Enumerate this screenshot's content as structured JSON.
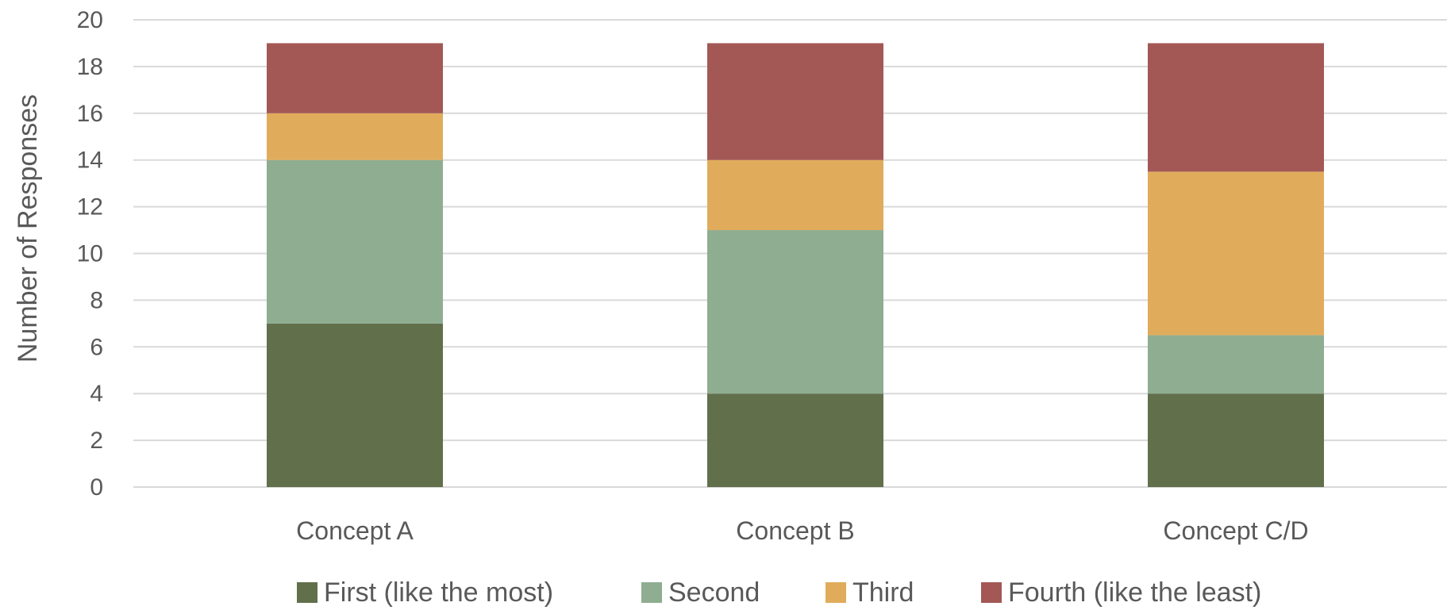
{
  "chart_data": {
    "type": "bar",
    "stacked": true,
    "categories": [
      "Concept A",
      "Concept B",
      "Concept C/D"
    ],
    "series": [
      {
        "name": "First (like the most)",
        "values": [
          7,
          4,
          4
        ],
        "color": "#61704B"
      },
      {
        "name": "Second",
        "values": [
          7,
          7,
          2.5
        ],
        "color": "#8FAD91"
      },
      {
        "name": "Third",
        "values": [
          2,
          3,
          7
        ],
        "color": "#E0AC5C"
      },
      {
        "name": "Fourth (like the least)",
        "values": [
          3,
          5,
          5.5
        ],
        "color": "#A35856"
      }
    ],
    "title": "",
    "xlabel": "",
    "ylabel": "Number of Responses",
    "ylim": [
      0,
      20
    ],
    "yticks": [
      0,
      2,
      4,
      6,
      8,
      10,
      12,
      14,
      16,
      18,
      20
    ],
    "grid": true,
    "legend_position": "bottom"
  }
}
